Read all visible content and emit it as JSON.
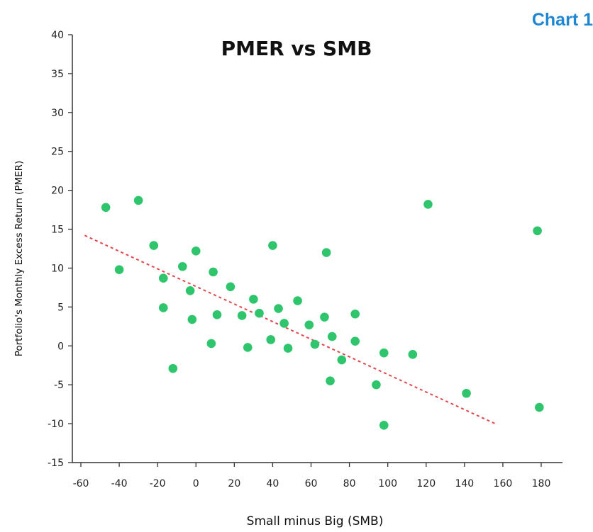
{
  "chart_label": "Chart 1",
  "chart_data": {
    "type": "scatter",
    "title": "PMER vs SMB",
    "xlabel": "Small minus Big (SMB)",
    "ylabel": "Portfolio's  Monthly Excess Return (PMER)",
    "xlim": [
      -60,
      180
    ],
    "ylim": [
      -15,
      40
    ],
    "xticks": [
      -60,
      -40,
      -20,
      0,
      20,
      40,
      60,
      80,
      100,
      120,
      140,
      160,
      180
    ],
    "yticks": [
      -15,
      -10,
      -5,
      0,
      5,
      10,
      15,
      20,
      25,
      30,
      35,
      40
    ],
    "grid": false,
    "marker_color": "#2ec56c",
    "trendline_color": "#e0474c",
    "points": [
      {
        "x": -47,
        "y": 17.8
      },
      {
        "x": -30,
        "y": 18.7
      },
      {
        "x": -40,
        "y": 9.8
      },
      {
        "x": -22,
        "y": 12.9
      },
      {
        "x": -17,
        "y": 8.7
      },
      {
        "x": -17,
        "y": 4.9
      },
      {
        "x": -12,
        "y": -2.9
      },
      {
        "x": -7,
        "y": 10.2
      },
      {
        "x": -3,
        "y": 7.1
      },
      {
        "x": -2,
        "y": 3.4
      },
      {
        "x": 0,
        "y": 12.2
      },
      {
        "x": 8,
        "y": 0.3
      },
      {
        "x": 9,
        "y": 9.5
      },
      {
        "x": 11,
        "y": 4.0
      },
      {
        "x": 18,
        "y": 7.6
      },
      {
        "x": 24,
        "y": 3.9
      },
      {
        "x": 27,
        "y": -0.2
      },
      {
        "x": 30,
        "y": 6.0
      },
      {
        "x": 33,
        "y": 4.2
      },
      {
        "x": 39,
        "y": 0.8
      },
      {
        "x": 40,
        "y": 12.9
      },
      {
        "x": 43,
        "y": 4.8
      },
      {
        "x": 46,
        "y": 2.9
      },
      {
        "x": 48,
        "y": -0.3
      },
      {
        "x": 53,
        "y": 5.8
      },
      {
        "x": 59,
        "y": 2.7
      },
      {
        "x": 62,
        "y": 0.2
      },
      {
        "x": 67,
        "y": 3.7
      },
      {
        "x": 68,
        "y": 12.0
      },
      {
        "x": 70,
        "y": -4.5
      },
      {
        "x": 71,
        "y": 1.2
      },
      {
        "x": 76,
        "y": -1.8
      },
      {
        "x": 83,
        "y": 4.1
      },
      {
        "x": 83,
        "y": 0.6
      },
      {
        "x": 94,
        "y": -5.0
      },
      {
        "x": 98,
        "y": -10.2
      },
      {
        "x": 98,
        "y": -0.9
      },
      {
        "x": 113,
        "y": -1.1
      },
      {
        "x": 121,
        "y": 18.2
      },
      {
        "x": 141,
        "y": -6.1
      },
      {
        "x": 178,
        "y": 14.8
      },
      {
        "x": 179,
        "y": -7.9
      }
    ],
    "trendline": {
      "x": [
        -58,
        156
      ],
      "y": [
        14.2,
        -10.0
      ]
    }
  }
}
